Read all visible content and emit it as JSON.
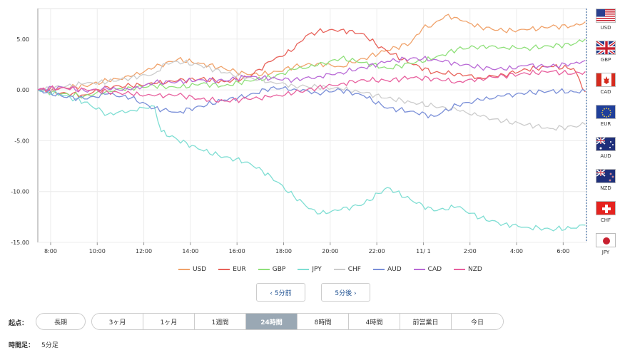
{
  "chart_data": {
    "type": "line",
    "ylim": [
      -15,
      8
    ],
    "y_ticks": [
      "5.00",
      "0.00",
      "-5.00",
      "-10.00",
      "-15.00"
    ],
    "y_tick_values": [
      5,
      0,
      -5,
      -10,
      -15
    ],
    "x_ticks": [
      "8:00",
      "10:00",
      "12:00",
      "14:00",
      "16:00",
      "18:00",
      "20:00",
      "22:00",
      "11/ 1",
      "2:00",
      "4:00",
      "6:00"
    ],
    "x_tick_hours": [
      0.55,
      2.55,
      4.55,
      6.55,
      8.55,
      10.55,
      12.55,
      14.55,
      16.55,
      18.55,
      20.55,
      22.55
    ],
    "x_range_hours": [
      0,
      23.55
    ],
    "grid": true,
    "legend_position": "bottom",
    "series": [
      {
        "name": "USD",
        "color": "#f0a26a",
        "points": [
          [
            0,
            0
          ],
          [
            1,
            0.2
          ],
          [
            2,
            0.4
          ],
          [
            3,
            0.9
          ],
          [
            4,
            1.3
          ],
          [
            5,
            2.2
          ],
          [
            6,
            3.0
          ],
          [
            7,
            2.6
          ],
          [
            8,
            2.1
          ],
          [
            9,
            1.5
          ],
          [
            10,
            1.6
          ],
          [
            11,
            2.3
          ],
          [
            12,
            2.6
          ],
          [
            13,
            2.3
          ],
          [
            14,
            3.1
          ],
          [
            15,
            3.9
          ],
          [
            16,
            4.6
          ],
          [
            16.5,
            6.0
          ],
          [
            17,
            6.5
          ],
          [
            17.5,
            7.3
          ],
          [
            18,
            7.1
          ],
          [
            18.5,
            6.6
          ],
          [
            19,
            6.2
          ],
          [
            20,
            5.8
          ],
          [
            21,
            5.9
          ],
          [
            22,
            6.2
          ],
          [
            23,
            6.3
          ],
          [
            23.5,
            6.7
          ]
        ]
      },
      {
        "name": "EUR",
        "color": "#e8625a",
        "points": [
          [
            0,
            0
          ],
          [
            1,
            -0.3
          ],
          [
            2,
            -0.5
          ],
          [
            3,
            0.3
          ],
          [
            4,
            0.4
          ],
          [
            5,
            0.6
          ],
          [
            6,
            0.9
          ],
          [
            7,
            1.1
          ],
          [
            8,
            0.8
          ],
          [
            9,
            1.2
          ],
          [
            10,
            2.8
          ],
          [
            11,
            4.0
          ],
          [
            11.5,
            5.3
          ],
          [
            12,
            5.7
          ],
          [
            12.5,
            5.9
          ],
          [
            13,
            5.9
          ],
          [
            14,
            5.5
          ],
          [
            14.5,
            4.5
          ],
          [
            15,
            3.8
          ],
          [
            16,
            2.6
          ],
          [
            17,
            1.7
          ],
          [
            18,
            1.6
          ],
          [
            19,
            1.2
          ],
          [
            20,
            1.5
          ],
          [
            21,
            2.0
          ],
          [
            22,
            2.3
          ],
          [
            23,
            2.1
          ],
          [
            23.5,
            -0.2
          ]
        ]
      },
      {
        "name": "GBP",
        "color": "#8fe07a",
        "points": [
          [
            0,
            0
          ],
          [
            1,
            -0.4
          ],
          [
            2,
            -0.6
          ],
          [
            3,
            -0.1
          ],
          [
            4,
            0.2
          ],
          [
            5,
            0.4
          ],
          [
            6,
            0.2
          ],
          [
            7,
            0.6
          ],
          [
            8,
            0.4
          ],
          [
            9,
            0.9
          ],
          [
            10,
            1.2
          ],
          [
            11,
            2.0
          ],
          [
            12,
            2.4
          ],
          [
            13,
            3.1
          ],
          [
            14,
            2.7
          ],
          [
            15,
            2.1
          ],
          [
            16,
            2.6
          ],
          [
            17,
            3.1
          ],
          [
            18,
            4.0
          ],
          [
            19,
            4.3
          ],
          [
            20,
            4.2
          ],
          [
            21,
            4.1
          ],
          [
            22,
            4.3
          ],
          [
            23,
            4.5
          ],
          [
            23.5,
            5.0
          ]
        ]
      },
      {
        "name": "JPY",
        "color": "#7fded3",
        "points": [
          [
            0,
            0
          ],
          [
            1,
            -0.5
          ],
          [
            2,
            -1.2
          ],
          [
            3,
            -2.4
          ],
          [
            4,
            -2.0
          ],
          [
            5,
            -1.6
          ],
          [
            5.3,
            -4.1
          ],
          [
            6,
            -4.9
          ],
          [
            7,
            -5.9
          ],
          [
            8,
            -6.6
          ],
          [
            9,
            -7.1
          ],
          [
            10,
            -8.5
          ],
          [
            11,
            -10.5
          ],
          [
            12,
            -12.2
          ],
          [
            13,
            -11.8
          ],
          [
            14,
            -11.2
          ],
          [
            15,
            -9.6
          ],
          [
            16,
            -10.8
          ],
          [
            17,
            -11.9
          ],
          [
            18,
            -11.5
          ],
          [
            19,
            -12.6
          ],
          [
            20,
            -13.2
          ],
          [
            21,
            -13.5
          ],
          [
            22,
            -13.7
          ],
          [
            23,
            -13.6
          ],
          [
            23.5,
            -13.3
          ]
        ]
      },
      {
        "name": "CHF",
        "color": "#cccccc",
        "points": [
          [
            0,
            0
          ],
          [
            1,
            0.3
          ],
          [
            2,
            0.6
          ],
          [
            3,
            0.8
          ],
          [
            4,
            1.2
          ],
          [
            5,
            1.6
          ],
          [
            5.5,
            2.6
          ],
          [
            6,
            2.8
          ],
          [
            7,
            2.4
          ],
          [
            8,
            1.7
          ],
          [
            9,
            1.2
          ],
          [
            10,
            0.8
          ],
          [
            11,
            0.4
          ],
          [
            12,
            0.3
          ],
          [
            13,
            0.1
          ],
          [
            14,
            -0.3
          ],
          [
            15,
            -0.8
          ],
          [
            16,
            -1.2
          ],
          [
            17,
            -1.6
          ],
          [
            18,
            -2.0
          ],
          [
            19,
            -2.6
          ],
          [
            20,
            -3.1
          ],
          [
            21,
            -3.4
          ],
          [
            22,
            -3.8
          ],
          [
            23,
            -3.6
          ],
          [
            23.5,
            -3.4
          ]
        ]
      },
      {
        "name": "AUD",
        "color": "#7a8fd8",
        "points": [
          [
            0,
            0
          ],
          [
            1,
            -0.6
          ],
          [
            2,
            -0.9
          ],
          [
            3,
            -0.4
          ],
          [
            4,
            -0.8
          ],
          [
            5,
            -1.8
          ],
          [
            6,
            -2.2
          ],
          [
            7,
            -1.6
          ],
          [
            8,
            -1.0
          ],
          [
            9,
            -0.6
          ],
          [
            10,
            0.2
          ],
          [
            11,
            0.1
          ],
          [
            12,
            -0.3
          ],
          [
            13,
            0.0
          ],
          [
            14,
            -0.6
          ],
          [
            15,
            -1.8
          ],
          [
            16,
            -2.1
          ],
          [
            17,
            -2.6
          ],
          [
            18,
            -1.5
          ],
          [
            19,
            -1.0
          ],
          [
            20,
            -0.6
          ],
          [
            21,
            -0.3
          ],
          [
            22,
            -0.1
          ],
          [
            23,
            -0.2
          ],
          [
            23.5,
            -0.1
          ]
        ]
      },
      {
        "name": "CAD",
        "color": "#b96ad6",
        "points": [
          [
            0,
            0
          ],
          [
            1,
            0.3
          ],
          [
            2,
            -0.1
          ],
          [
            3,
            0.1
          ],
          [
            4,
            0.0
          ],
          [
            5,
            0.7
          ],
          [
            6,
            0.8
          ],
          [
            7,
            1.0
          ],
          [
            8,
            0.9
          ],
          [
            9,
            1.3
          ],
          [
            10,
            1.1
          ],
          [
            11,
            1.0
          ],
          [
            12,
            1.3
          ],
          [
            13,
            1.7
          ],
          [
            14,
            2.2
          ],
          [
            15,
            2.8
          ],
          [
            16,
            3.1
          ],
          [
            17,
            3.0
          ],
          [
            18,
            2.6
          ],
          [
            19,
            2.2
          ],
          [
            20,
            2.0
          ],
          [
            21,
            2.4
          ],
          [
            22,
            2.3
          ],
          [
            23,
            2.6
          ],
          [
            23.5,
            2.9
          ]
        ]
      },
      {
        "name": "NZD",
        "color": "#e8609e",
        "points": [
          [
            0,
            0
          ],
          [
            1,
            0.2
          ],
          [
            2,
            0.1
          ],
          [
            3,
            -0.2
          ],
          [
            4,
            -0.4
          ],
          [
            5,
            -0.6
          ],
          [
            6,
            -0.5
          ],
          [
            7,
            -0.9
          ],
          [
            8,
            -1.1
          ],
          [
            9,
            -0.9
          ],
          [
            10,
            -0.7
          ],
          [
            11,
            -0.3
          ],
          [
            12,
            0.2
          ],
          [
            13,
            0.6
          ],
          [
            14,
            1.0
          ],
          [
            15,
            0.9
          ],
          [
            16,
            1.2
          ],
          [
            17,
            1.1
          ],
          [
            18,
            0.8
          ],
          [
            19,
            1.1
          ],
          [
            20,
            1.4
          ],
          [
            21,
            1.6
          ],
          [
            22,
            1.8
          ],
          [
            23,
            1.6
          ],
          [
            23.5,
            1.8
          ]
        ]
      }
    ]
  },
  "legend": [
    "USD",
    "EUR",
    "GBP",
    "JPY",
    "CHF",
    "AUD",
    "CAD",
    "NZD"
  ],
  "nav": {
    "prev": "‹ 5分前",
    "next": "5分後 ›"
  },
  "flags": [
    {
      "code": "USD",
      "icon": "us-flag-icon"
    },
    {
      "code": "GBP",
      "icon": "uk-flag-icon"
    },
    {
      "code": "CAD",
      "icon": "canada-flag-icon"
    },
    {
      "code": "EUR",
      "icon": "eu-flag-icon"
    },
    {
      "code": "AUD",
      "icon": "australia-flag-icon"
    },
    {
      "code": "NZD",
      "icon": "new-zealand-flag-icon"
    },
    {
      "code": "CHF",
      "icon": "swiss-flag-icon"
    },
    {
      "code": "JPY",
      "icon": "japan-flag-icon"
    }
  ],
  "controls": {
    "start_label": "起点：",
    "long_term": "長期",
    "periods": [
      "3ヶ月",
      "1ヶ月",
      "1週間",
      "24時間",
      "8時間",
      "4時間",
      "前営業日",
      "今日"
    ],
    "active_period": "24時間",
    "timeframe_label": "時間足：",
    "timeframe_value": "5分足"
  }
}
